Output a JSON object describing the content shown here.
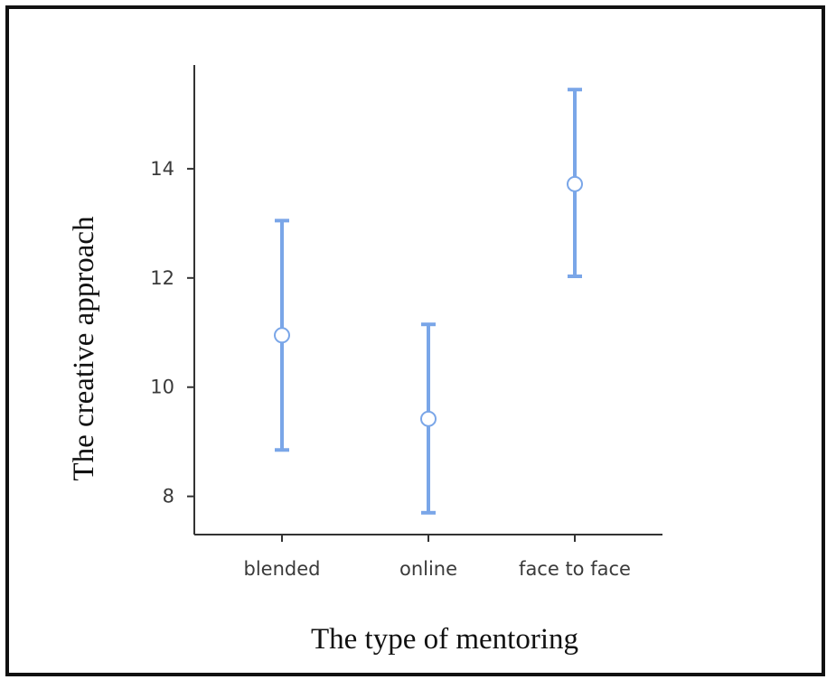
{
  "chart_data": {
    "type": "errorbar",
    "xlabel": "The type of mentoring",
    "ylabel": "The creative approach",
    "categories": [
      "blended",
      "online",
      "face to face"
    ],
    "means": [
      10.95,
      9.42,
      13.72
    ],
    "lower": [
      8.85,
      7.7,
      12.03
    ],
    "upper": [
      13.05,
      11.15,
      15.45
    ],
    "yticks": [
      8,
      10,
      12,
      14
    ],
    "ylim": [
      7.3,
      15.9
    ],
    "grid": false,
    "colors": {
      "bar": "#7aa6e8",
      "axis": "#333333"
    }
  }
}
